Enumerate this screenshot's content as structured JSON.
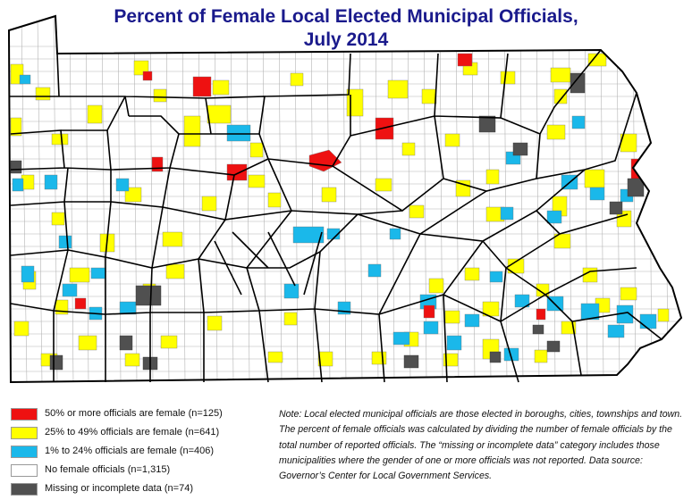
{
  "title": {
    "line1": "Percent of Female Local Elected Municipal Officials,",
    "line2": "July 2014"
  },
  "colors": {
    "red": "#ee1111",
    "yellow": "#ffff00",
    "cyan": "#1ab8ea",
    "white": "#ffffff",
    "gray": "#505050",
    "title": "#1a1a8c",
    "county_border": "#000000"
  },
  "legend": [
    {
      "label": "50% or more officials are female (n=125)",
      "color": "#ee1111"
    },
    {
      "label": "25% to 49% officials are female (n=641)",
      "color": "#ffff00"
    },
    {
      "label": "1% to 24% officials are female (n=406)",
      "color": "#1ab8ea"
    },
    {
      "label": "No female officials (n=1,315)",
      "color": "#ffffff"
    },
    {
      "label": "Missing or incomplete data (n=74)",
      "color": "#505050"
    }
  ],
  "note": "Note: Local elected municipal officials are those elected in boroughs, cities, townships and town. The percent of female officials was calculated by dividing the number of female officials by the total number of reported officials. The “missing or incomplete data” category includes those municipalities where the gender of one or more officials was not reported. Data source: Governor’s Center for Local Government Services."
}
